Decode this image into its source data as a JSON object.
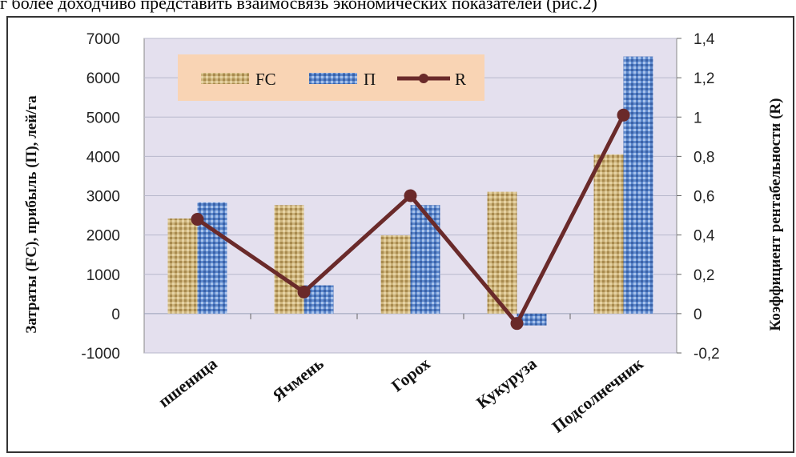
{
  "caption_fragment": "г более доходчиво представить взаимосвязь экономических показателей (рис.2)",
  "chart_data": {
    "type": "bar",
    "categories": [
      "пшеница",
      "Ячмень",
      "Горох",
      "Кукуруза",
      "Подсолнечник"
    ],
    "series": [
      {
        "name": "FC",
        "axis": "left",
        "type": "bar",
        "color": "#c9b27a",
        "values": [
          2420,
          2760,
          1990,
          3100,
          4050
        ]
      },
      {
        "name": "П",
        "axis": "left",
        "type": "bar",
        "color": "#5b86c8",
        "values": [
          2830,
          720,
          2760,
          -300,
          6540
        ]
      },
      {
        "name": "R",
        "axis": "right",
        "type": "line",
        "color": "#6a2a2a",
        "values": [
          0.48,
          0.11,
          0.6,
          -0.05,
          1.01
        ]
      }
    ],
    "ylabel": "Затраты (FC), прибыль (П), лей/га",
    "y2label": "Коэффициент рентабельности (R)",
    "ylim": [
      -1000,
      7000
    ],
    "y2lim": [
      -0.2,
      1.4
    ],
    "yticks": [
      "7000",
      "6000",
      "5000",
      "4000",
      "3000",
      "2000",
      "1000",
      "0",
      "-1000"
    ],
    "y2ticks": [
      "1,4",
      "1,2",
      "1",
      "0,8",
      "0,6",
      "0,4",
      "0,2",
      "0",
      "-0,2"
    ],
    "legend_position": "top-left",
    "grid": true
  }
}
